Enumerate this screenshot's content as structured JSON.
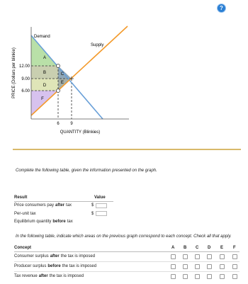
{
  "help_icon": "?",
  "graph": {
    "y_axis_label": "PRICE (Dollars per blinkie)",
    "x_axis_label": "QUANTITY (Blinkies)",
    "y_ticks": [
      "12.00",
      "9.00",
      "6.00"
    ],
    "x_ticks": [
      "6",
      "9"
    ],
    "demand_label": "Demand",
    "supply_label": "Supply",
    "areas": [
      "A",
      "B",
      "C",
      "D",
      "E",
      "F"
    ]
  },
  "instruction": "Complete the following table, given the information presented on the graph.",
  "table1": {
    "headers": [
      "Result",
      "Value"
    ],
    "rows": [
      {
        "parts": [
          "Price consumers pay",
          "after",
          "tax"
        ],
        "prefix": "$"
      },
      {
        "parts": [
          "Per-unit tax"
        ],
        "prefix": "$"
      },
      {
        "parts": [
          "Equilibrium quantity",
          "before",
          "tax"
        ]
      }
    ]
  },
  "instruction2": "In the following table, indicate which areas on the previous graph correspond to each concept. Check all that apply.",
  "table2": {
    "headers": [
      "Concept",
      "A",
      "B",
      "C",
      "D",
      "E",
      "F"
    ],
    "rows": [
      [
        "Consumer surplus",
        "after",
        "the tax is imposed"
      ],
      [
        "Producer surplus",
        "before",
        "the tax is imposed"
      ],
      [
        "Tax revenue",
        "after",
        "the tax is imposed"
      ]
    ]
  }
}
